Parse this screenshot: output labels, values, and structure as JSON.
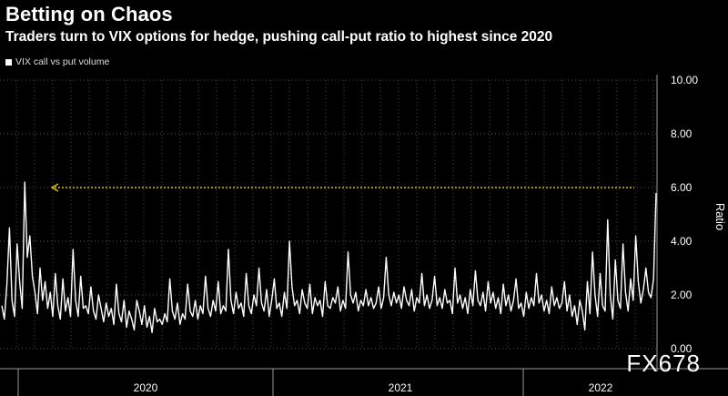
{
  "chart_data": {
    "type": "line",
    "title": "Betting on Chaos",
    "subtitle": "Traders turn to VIX options for hedge, pushing call-put ratio to highest since 2020",
    "legend": [
      {
        "name": "VIX call vs put volume",
        "color": "#ffffff"
      }
    ],
    "ylabel": "Ratio",
    "xlabel": "",
    "ylim": [
      0,
      10
    ],
    "yticks": [
      "0.00",
      "2.00",
      "4.00",
      "6.00",
      "8.00",
      "10.00"
    ],
    "xticks": [
      "2020",
      "2021",
      "2022"
    ],
    "x_range": [
      "2019-07",
      "2022-07"
    ],
    "reference_line": {
      "value": 6.0,
      "color": "#d6c400",
      "style": "dotted",
      "from": "2019-11",
      "to": "2022-06"
    },
    "series": [
      {
        "name": "VIX call vs put volume",
        "color": "#ffffff",
        "values": [
          1.6,
          1.1,
          2.4,
          4.5,
          1.8,
          1.2,
          3.9,
          2.5,
          1.5,
          6.2,
          3.4,
          4.2,
          2.7,
          2.1,
          1.3,
          3.0,
          1.8,
          2.5,
          1.5,
          2.1,
          1.2,
          2.8,
          1.6,
          1.1,
          2.6,
          1.4,
          1.9,
          1.2,
          3.7,
          1.8,
          1.2,
          2.7,
          1.5,
          1.6,
          1.3,
          2.3,
          1.4,
          1.1,
          2.0,
          1.5,
          1.0,
          1.7,
          1.2,
          1.5,
          0.9,
          2.4,
          1.3,
          1.0,
          1.8,
          0.8,
          1.4,
          1.1,
          0.7,
          1.8,
          1.4,
          0.9,
          1.6,
          0.8,
          1.2,
          0.6,
          1.5,
          1.0,
          1.1,
          0.9,
          1.3,
          1.0,
          2.6,
          1.4,
          1.1,
          1.7,
          0.9,
          1.3,
          1.1,
          2.4,
          1.4,
          1.2,
          1.8,
          1.1,
          1.6,
          1.3,
          2.7,
          1.5,
          1.2,
          1.8,
          1.4,
          2.5,
          1.3,
          1.6,
          1.4,
          3.7,
          1.8,
          1.3,
          2.1,
          1.5,
          1.7,
          1.2,
          2.8,
          1.6,
          1.3,
          2.0,
          1.6,
          3.0,
          1.7,
          1.4,
          2.2,
          1.2,
          1.8,
          2.6,
          1.5,
          1.7,
          1.2,
          2.1,
          1.5,
          4.0,
          2.3,
          1.6,
          1.8,
          1.3,
          2.2,
          1.7,
          1.5,
          2.4,
          1.3,
          1.9,
          1.6,
          1.8,
          1.2,
          2.5,
          1.6,
          1.5,
          1.9,
          1.7,
          2.3,
          1.4,
          1.8,
          1.5,
          3.6,
          2.0,
          1.7,
          2.1,
          1.4,
          1.8,
          1.6,
          2.2,
          1.6,
          1.9,
          1.5,
          1.7,
          2.3,
          1.5,
          1.9,
          3.4,
          2.0,
          1.6,
          2.1,
          1.7,
          2.0,
          1.5,
          2.3,
          1.8,
          1.6,
          2.2,
          1.4,
          1.9,
          1.7,
          2.8,
          1.6,
          2.0,
          1.5,
          1.8,
          2.7,
          1.6,
          1.9,
          1.5,
          2.2,
          1.7,
          1.8,
          1.3,
          3.0,
          1.7,
          2.0,
          1.5,
          1.9,
          1.3,
          2.2,
          1.6,
          2.9,
          1.8,
          1.6,
          2.1,
          1.4,
          2.5,
          1.7,
          2.1,
          1.5,
          1.9,
          1.3,
          2.4,
          1.6,
          2.0,
          1.4,
          1.8,
          2.6,
          1.5,
          1.7,
          1.2,
          2.1,
          1.5,
          1.9,
          1.6,
          2.8,
          1.7,
          2.0,
          1.4,
          1.8,
          1.3,
          2.3,
          1.6,
          1.9,
          1.5,
          1.7,
          2.5,
          1.4,
          2.0,
          1.2,
          1.6,
          0.9,
          1.8,
          1.4,
          0.7,
          2.5,
          1.3,
          3.6,
          2.0,
          1.2,
          2.8,
          1.6,
          1.4,
          4.8,
          2.0,
          1.1,
          3.3,
          1.8,
          1.5,
          3.9,
          2.1,
          1.4,
          2.6,
          1.8,
          4.2,
          2.5,
          1.7,
          2.2,
          3.0,
          2.1,
          1.9,
          2.6,
          5.8
        ]
      }
    ]
  },
  "watermark": "FX678"
}
